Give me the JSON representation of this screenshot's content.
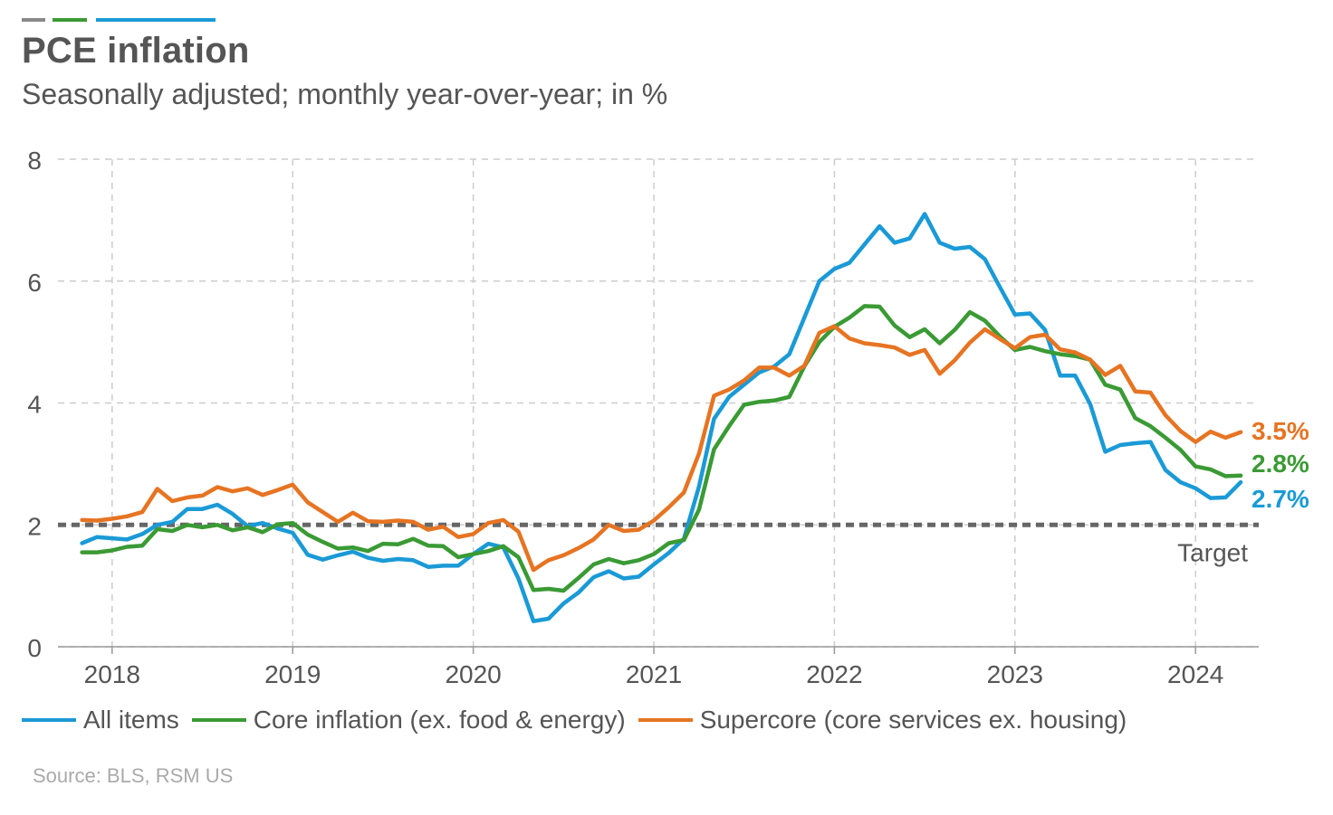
{
  "title": "PCE inflation",
  "subtitle": "Seasonally adjusted; monthly year-over-year; in %",
  "source": "Source: BLS, RSM US",
  "colors": {
    "all": "#1a9ad6",
    "core": "#3a9a34",
    "super": "#e67422",
    "target": "#666666",
    "accent_gray": "#888888"
  },
  "legend": [
    {
      "label": "All items",
      "color": "#1a9ad6"
    },
    {
      "label": "Core inflation (ex. food & energy)",
      "color": "#3a9a34"
    },
    {
      "label": "Supercore (core services ex. housing)",
      "color": "#e67422"
    }
  ],
  "chart_data": {
    "type": "line",
    "title": "PCE inflation",
    "subtitle": "Seasonally adjusted; monthly year-over-year; in %",
    "x_start": "2017-11",
    "x_end": "2024-04",
    "xlim": [
      2017.7,
      2024.35
    ],
    "ylim": [
      0,
      8
    ],
    "yticks": [
      "0",
      "2",
      "4",
      "6",
      "8"
    ],
    "xticks": [
      "2018",
      "2019",
      "2020",
      "2021",
      "2022",
      "2023",
      "2024"
    ],
    "grid": true,
    "target": {
      "value": 2,
      "label": "Target"
    },
    "series": [
      {
        "name": "All items",
        "key": "all",
        "end_label": "2.7%",
        "values": [
          1.7,
          1.8,
          1.78,
          1.76,
          1.85,
          2.0,
          2.05,
          2.26,
          2.26,
          2.33,
          2.18,
          1.98,
          2.03,
          1.94,
          1.87,
          1.51,
          1.43,
          1.5,
          1.56,
          1.46,
          1.41,
          1.44,
          1.42,
          1.31,
          1.33,
          1.33,
          1.52,
          1.69,
          1.63,
          1.12,
          0.42,
          0.46,
          0.71,
          0.89,
          1.14,
          1.24,
          1.12,
          1.15,
          1.35,
          1.54,
          1.77,
          2.63,
          3.74,
          4.1,
          4.3,
          4.5,
          4.6,
          4.8,
          5.4,
          6.0,
          6.2,
          6.3,
          6.6,
          6.9,
          6.63,
          6.7,
          7.1,
          6.63,
          6.53,
          6.56,
          6.36,
          5.9,
          5.45,
          5.47,
          5.2,
          4.45,
          4.45,
          3.98,
          3.2,
          3.31,
          3.34,
          3.36,
          2.9,
          2.7,
          2.6,
          2.44,
          2.45,
          2.7
        ]
      },
      {
        "name": "Core inflation (ex. food & energy)",
        "key": "core",
        "end_label": "2.8%",
        "values": [
          1.55,
          1.55,
          1.58,
          1.64,
          1.66,
          1.93,
          1.9,
          2.0,
          1.96,
          2.0,
          1.91,
          1.96,
          1.88,
          2.01,
          2.03,
          1.84,
          1.72,
          1.61,
          1.63,
          1.57,
          1.69,
          1.68,
          1.77,
          1.66,
          1.65,
          1.47,
          1.52,
          1.57,
          1.65,
          1.47,
          0.93,
          0.95,
          0.92,
          1.13,
          1.35,
          1.44,
          1.37,
          1.42,
          1.52,
          1.7,
          1.75,
          2.25,
          3.24,
          3.62,
          3.97,
          4.02,
          4.04,
          4.1,
          4.6,
          5.0,
          5.25,
          5.4,
          5.59,
          5.58,
          5.27,
          5.08,
          5.21,
          4.98,
          5.2,
          5.49,
          5.35,
          5.09,
          4.87,
          4.92,
          4.85,
          4.8,
          4.77,
          4.71,
          4.3,
          4.22,
          3.75,
          3.62,
          3.43,
          3.23,
          2.96,
          2.91,
          2.8,
          2.81
        ]
      },
      {
        "name": "Supercore (core services ex. housing)",
        "key": "super",
        "end_label": "3.5%",
        "values": [
          2.08,
          2.07,
          2.1,
          2.14,
          2.21,
          2.59,
          2.39,
          2.45,
          2.48,
          2.62,
          2.55,
          2.6,
          2.49,
          2.57,
          2.66,
          2.37,
          2.21,
          2.05,
          2.2,
          2.06,
          2.05,
          2.07,
          2.05,
          1.92,
          1.97,
          1.8,
          1.85,
          2.03,
          2.08,
          1.89,
          1.26,
          1.42,
          1.5,
          1.62,
          1.76,
          2.0,
          1.9,
          1.92,
          2.07,
          2.29,
          2.53,
          3.17,
          4.12,
          4.22,
          4.37,
          4.58,
          4.58,
          4.45,
          4.61,
          5.15,
          5.26,
          5.06,
          4.98,
          4.95,
          4.91,
          4.79,
          4.87,
          4.48,
          4.7,
          4.99,
          5.21,
          5.05,
          4.9,
          5.08,
          5.12,
          4.88,
          4.83,
          4.71,
          4.46,
          4.61,
          4.19,
          4.17,
          3.8,
          3.54,
          3.36,
          3.53,
          3.43,
          3.52
        ]
      }
    ]
  }
}
